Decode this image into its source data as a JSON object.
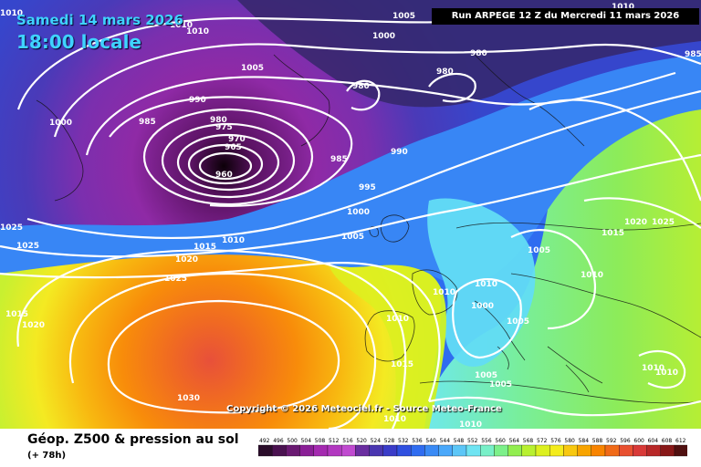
{
  "header": {
    "date": "Samedi 14 mars 2026",
    "time": "18:00 locale",
    "run": "Run ARPEGE 12 Z du Mercredi 11 mars 2026"
  },
  "footer": {
    "title": "Géop. Z500 & pression au sol",
    "lead": "(+ 78h)",
    "copyright": "Copyright © 2026 Meteociel.fr - Source Meteo-France"
  },
  "legend": {
    "levels": [
      "492",
      "496",
      "500",
      "504",
      "508",
      "512",
      "516",
      "520",
      "524",
      "528",
      "532",
      "536",
      "540",
      "544",
      "548",
      "552",
      "556",
      "560",
      "564",
      "568",
      "572",
      "576",
      "580",
      "584",
      "588",
      "592",
      "596",
      "600",
      "604",
      "608",
      "612"
    ],
    "colors": [
      "#2a0d2a",
      "#4a1250",
      "#6a1a72",
      "#8a1f96",
      "#a42ab0",
      "#b238c0",
      "#c04ad0",
      "#6a2ea0",
      "#4a36b0",
      "#3a3cc8",
      "#3050e0",
      "#2f6cf0",
      "#3a8af5",
      "#4aa8fa",
      "#5cc6f7",
      "#6fe4f2",
      "#78f0c8",
      "#7cf08a",
      "#92ee50",
      "#b8f030",
      "#dcf020",
      "#f4ec1c",
      "#f8c810",
      "#f8a400",
      "#f88400",
      "#f06a18",
      "#e85030",
      "#d83a38",
      "#b82828",
      "#881818",
      "#501010"
    ]
  },
  "pressure_labels": [
    "1005",
    "1000",
    "995",
    "990",
    "985",
    "980",
    "975",
    "970",
    "965",
    "960",
    "1010",
    "1015",
    "1020",
    "1025",
    "1030"
  ],
  "map": {
    "sea": "#2f5fe0",
    "low_core": "#1a0010",
    "high_core": "#f06a2a"
  }
}
